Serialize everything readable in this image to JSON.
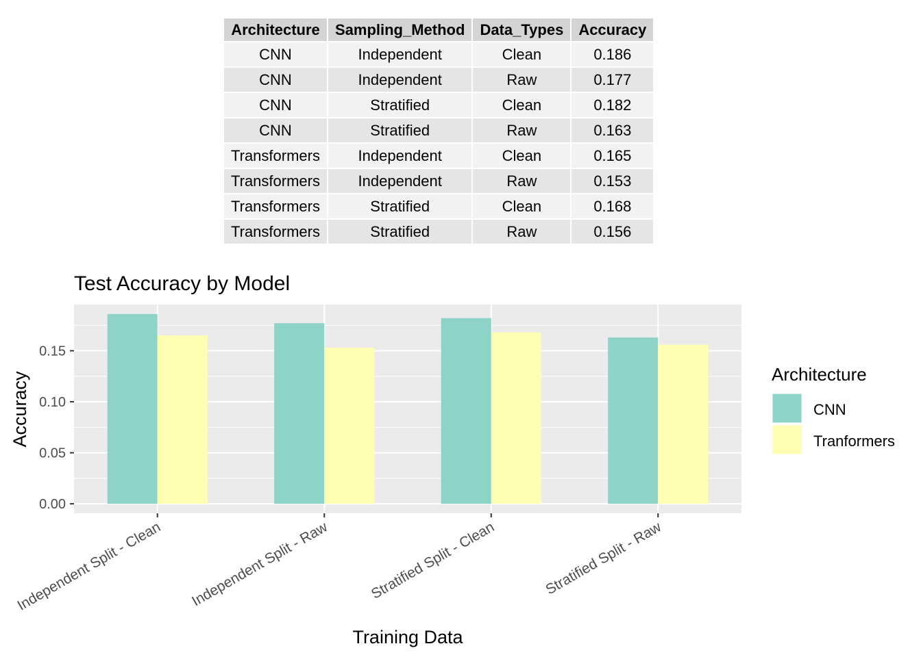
{
  "table": {
    "columns": [
      "Architecture",
      "Sampling_Method",
      "Data_Types",
      "Accuracy"
    ],
    "rows": [
      [
        "CNN",
        "Independent",
        "Clean",
        "0.186"
      ],
      [
        "CNN",
        "Independent",
        "Raw",
        "0.177"
      ],
      [
        "CNN",
        "Stratified",
        "Clean",
        "0.182"
      ],
      [
        "CNN",
        "Stratified",
        "Raw",
        "0.163"
      ],
      [
        "Transformers",
        "Independent",
        "Clean",
        "0.165"
      ],
      [
        "Transformers",
        "Independent",
        "Raw",
        "0.153"
      ],
      [
        "Transformers",
        "Stratified",
        "Clean",
        "0.168"
      ],
      [
        "Transformers",
        "Stratified",
        "Raw",
        "0.156"
      ]
    ]
  },
  "chart_data": {
    "type": "bar",
    "title": "Test Accuracy by Model",
    "xlabel": "Training Data",
    "ylabel": "Accuracy",
    "categories": [
      "Independent Split - Clean",
      "Independent Split - Raw",
      "Stratified Split - Clean",
      "Stratified Split - Raw"
    ],
    "series": [
      {
        "name": "CNN",
        "color": "#8DD3C7",
        "values": [
          0.186,
          0.177,
          0.182,
          0.163
        ]
      },
      {
        "name": "Tranformers",
        "color": "#FFFFB3",
        "values": [
          0.165,
          0.153,
          0.168,
          0.156
        ]
      }
    ],
    "ylim": [
      -0.0093,
      0.1953
    ],
    "yticks": [
      0.0,
      0.05,
      0.1,
      0.15
    ],
    "ytick_labels": [
      "0.00",
      "0.05",
      "0.10",
      "0.15"
    ],
    "grid": true,
    "legend": {
      "title": "Architecture",
      "position": "right"
    },
    "panel_color": "#EBEBEB",
    "grid_color": "#FFFFFF"
  }
}
